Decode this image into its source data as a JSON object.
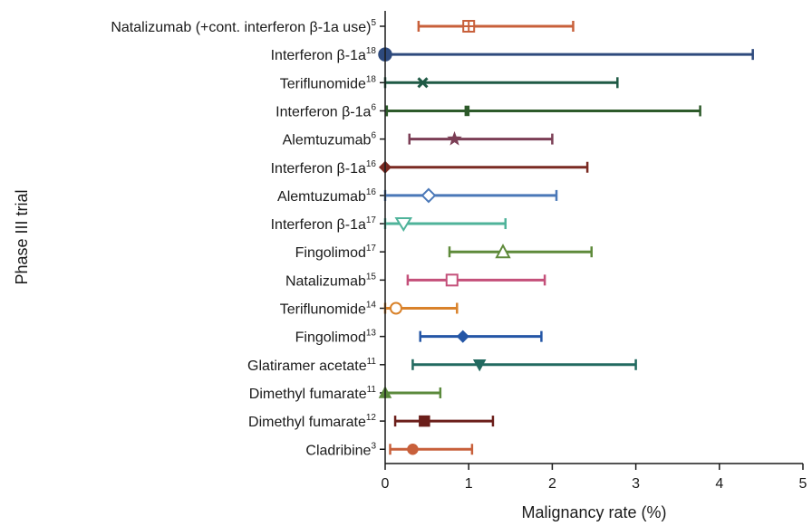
{
  "chart_data": {
    "type": "forest",
    "xlabel": "Malignancy rate (%)",
    "ylabel": "Phase III trial",
    "xlim": [
      0,
      5
    ],
    "x_ticks": [
      "0",
      "1",
      "2",
      "3",
      "4",
      "5"
    ],
    "grid": false,
    "categories": [
      {
        "label": "Natalizumab (+cont. interferon β-1a use)",
        "ref": "5",
        "estimate": 1.0,
        "lower": 0.4,
        "upper": 2.25,
        "marker": "square-cross",
        "color": "#c8603b"
      },
      {
        "label": "Interferon β-1a",
        "ref": "18",
        "estimate": 0.0,
        "lower": 0.0,
        "upper": 4.4,
        "marker": "circle-filled",
        "color": "#2e4a7d"
      },
      {
        "label": "Teriflunomide",
        "ref": "18",
        "estimate": 0.45,
        "lower": 0.0,
        "upper": 2.78,
        "marker": "x",
        "color": "#1f5a45"
      },
      {
        "label": "Interferon β-1a",
        "ref": "6",
        "estimate": 0.98,
        "lower": 0.02,
        "upper": 3.77,
        "marker": "bar",
        "color": "#2d5a2a"
      },
      {
        "label": "Alemtuzumab",
        "ref": "6",
        "estimate": 0.83,
        "lower": 0.29,
        "upper": 2.0,
        "marker": "star",
        "color": "#7b3e55"
      },
      {
        "label": "Interferon β-1a",
        "ref": "16",
        "estimate": 0.0,
        "lower": 0.0,
        "upper": 2.42,
        "marker": "diamond-filled",
        "color": "#7a2a22"
      },
      {
        "label": "Alemtuzumab",
        "ref": "16",
        "estimate": 0.52,
        "lower": 0.0,
        "upper": 2.05,
        "marker": "diamond-open",
        "color": "#4a78b8"
      },
      {
        "label": "Interferon β-1a",
        "ref": "17",
        "estimate": 0.22,
        "lower": 0.0,
        "upper": 1.44,
        "marker": "triangle-down-open",
        "color": "#4fb39a"
      },
      {
        "label": "Fingolimod",
        "ref": "17",
        "estimate": 1.41,
        "lower": 0.77,
        "upper": 2.47,
        "marker": "triangle-up-open",
        "color": "#5e8a3a"
      },
      {
        "label": "Natalizumab",
        "ref": "15",
        "estimate": 0.8,
        "lower": 0.27,
        "upper": 1.91,
        "marker": "square-open",
        "color": "#c4507a"
      },
      {
        "label": "Teriflunomide",
        "ref": "14",
        "estimate": 0.13,
        "lower": 0.0,
        "upper": 0.86,
        "marker": "circle-open",
        "color": "#d9822b"
      },
      {
        "label": "Fingolimod",
        "ref": "13",
        "estimate": 0.93,
        "lower": 0.42,
        "upper": 1.87,
        "marker": "diamond-filled",
        "color": "#2456a6"
      },
      {
        "label": "Glatiramer acetate",
        "ref": "11",
        "estimate": 1.13,
        "lower": 0.33,
        "upper": 3.0,
        "marker": "triangle-down-filled",
        "color": "#226a60"
      },
      {
        "label": "Dimethyl fumarate",
        "ref": "11",
        "estimate": 0.0,
        "lower": 0.0,
        "upper": 0.66,
        "marker": "triangle-up-filled",
        "color": "#5b8a3c"
      },
      {
        "label": "Dimethyl fumarate",
        "ref": "12",
        "estimate": 0.47,
        "lower": 0.12,
        "upper": 1.29,
        "marker": "square-filled",
        "color": "#6b1e1a"
      },
      {
        "label": "Cladribine",
        "ref": "3",
        "estimate": 0.33,
        "lower": 0.06,
        "upper": 1.04,
        "marker": "circle-filled",
        "color": "#c8603b"
      }
    ]
  }
}
